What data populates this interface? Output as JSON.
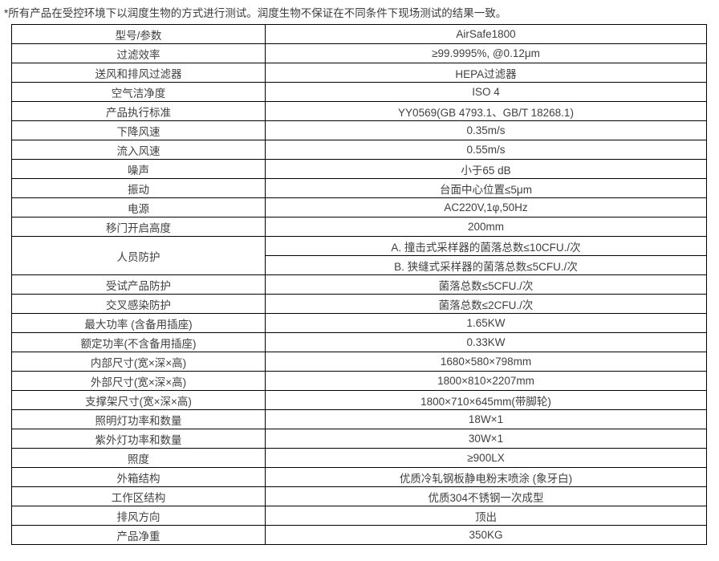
{
  "note": "*所有产品在受控环境下以润度生物的方式进行测试。润度生物不保证在不同条件下现场测试的结果一致。",
  "colors": {
    "background": "#ffffff",
    "border": "#000000",
    "text": "#404040"
  },
  "table": {
    "rows": [
      {
        "label": "型号/参数",
        "values": [
          "AirSafe1800"
        ]
      },
      {
        "label": "过滤效率",
        "values": [
          "≥99.9995%, @0.12μm"
        ]
      },
      {
        "label": "送风和排风过滤器",
        "values": [
          "HEPA过滤器"
        ]
      },
      {
        "label": "空气洁净度",
        "values": [
          "ISO 4"
        ]
      },
      {
        "label": "产品执行标准",
        "values": [
          "YY0569(GB 4793.1、GB/T 18268.1)"
        ]
      },
      {
        "label": "下降风速",
        "values": [
          "0.35m/s"
        ]
      },
      {
        "label": "流入风速",
        "values": [
          "0.55m/s"
        ]
      },
      {
        "label": "噪声",
        "values": [
          "小于65 dB"
        ]
      },
      {
        "label": "振动",
        "values": [
          "台面中心位置≤5μm"
        ]
      },
      {
        "label": "电源",
        "values": [
          "AC220V,1φ,50Hz"
        ]
      },
      {
        "label": "移门开启高度",
        "values": [
          "200mm"
        ]
      },
      {
        "label": "人员防护",
        "values": [
          "A. 撞击式采样器的菌落总数≤10CFU./次",
          "B. 狭缝式采样器的菌落总数≤5CFU./次"
        ]
      },
      {
        "label": "受试产品防护",
        "values": [
          "菌落总数≤5CFU./次"
        ]
      },
      {
        "label": "交叉感染防护",
        "values": [
          "菌落总数≤2CFU./次"
        ]
      },
      {
        "label": "最大功率 (含备用插座)",
        "values": [
          "1.65KW"
        ]
      },
      {
        "label": "额定功率(不含备用插座)",
        "values": [
          "0.33KW"
        ]
      },
      {
        "label": "内部尺寸(宽×深×高)",
        "values": [
          "1680×580×798mm"
        ]
      },
      {
        "label": "外部尺寸(宽×深×高)",
        "values": [
          "1800×810×2207mm"
        ]
      },
      {
        "label": "支撑架尺寸(宽×深×高)",
        "values": [
          "1800×710×645mm(带脚轮)"
        ]
      },
      {
        "label": "照明灯功率和数量",
        "values": [
          "18W×1"
        ]
      },
      {
        "label": "紫外灯功率和数量",
        "values": [
          "30W×1"
        ]
      },
      {
        "label": "照度",
        "values": [
          "≥900LX"
        ]
      },
      {
        "label": "外箱结构",
        "values": [
          "优质冷轧钢板静电粉末喷涂 (象牙白)"
        ]
      },
      {
        "label": "工作区结构",
        "values": [
          "优质304不锈钢一次成型"
        ]
      },
      {
        "label": "排风方向",
        "values": [
          "顶出"
        ]
      },
      {
        "label": "产品净重",
        "values": [
          "350KG"
        ]
      }
    ]
  }
}
